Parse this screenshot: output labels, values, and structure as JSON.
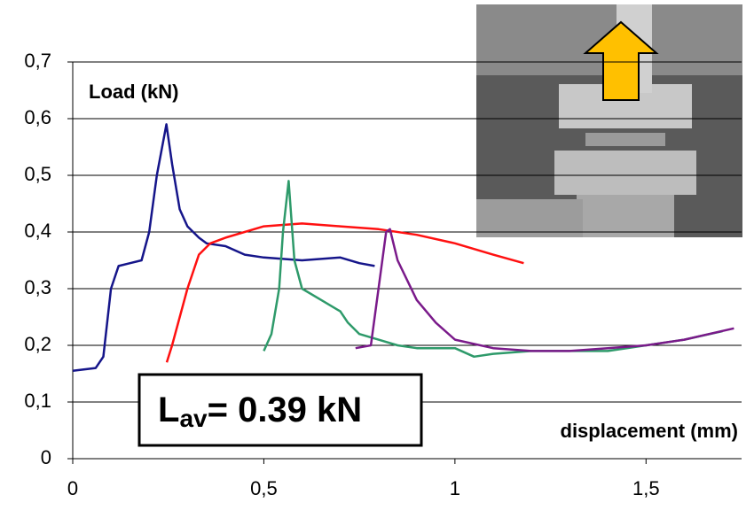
{
  "chart_data": {
    "type": "line",
    "y_label": "Load (kN)",
    "x_label": "displacement (mm)",
    "annotation": {
      "main": "L",
      "sub": "av",
      "rest": "= 0.39 kN"
    },
    "xlim": [
      0,
      1.75
    ],
    "ylim": [
      0,
      0.7
    ],
    "grid": true,
    "xticks": [
      0,
      {
        "value": 0.5,
        "label": "0,5"
      },
      1,
      {
        "value": 1.5,
        "label": "1,5"
      }
    ],
    "yticks": [
      0,
      {
        "value": 0.1,
        "label": "0,1"
      },
      {
        "value": 0.2,
        "label": "0,2"
      },
      {
        "value": 0.3,
        "label": "0,3"
      },
      {
        "value": 0.4,
        "label": "0,4"
      },
      {
        "value": 0.5,
        "label": "0,5"
      },
      {
        "value": 0.6,
        "label": "0,6"
      },
      {
        "value": 0.7,
        "label": "0,7"
      }
    ],
    "series": [
      {
        "color": "#15158a",
        "x": [
          0,
          0.06,
          0.08,
          0.1,
          0.12,
          0.15,
          0.18,
          0.2,
          0.22,
          0.245,
          0.26,
          0.28,
          0.3,
          0.33,
          0.35,
          0.4,
          0.45,
          0.5,
          0.6,
          0.7,
          0.75,
          0.79
        ],
        "values": [
          0.155,
          0.16,
          0.18,
          0.3,
          0.34,
          0.345,
          0.35,
          0.4,
          0.5,
          0.59,
          0.52,
          0.44,
          0.41,
          0.39,
          0.38,
          0.375,
          0.36,
          0.355,
          0.35,
          0.355,
          0.345,
          0.34
        ]
      },
      {
        "color": "#ff1010",
        "x": [
          0.246,
          0.26,
          0.3,
          0.33,
          0.36,
          0.4,
          0.5,
          0.6,
          0.7,
          0.8,
          0.9,
          1.0,
          1.1,
          1.18
        ],
        "values": [
          0.17,
          0.2,
          0.3,
          0.36,
          0.38,
          0.39,
          0.41,
          0.415,
          0.41,
          0.405,
          0.395,
          0.38,
          0.36,
          0.345
        ]
      },
      {
        "color": "#2e9a6a",
        "x": [
          0.5,
          0.52,
          0.54,
          0.55,
          0.565,
          0.58,
          0.6,
          0.65,
          0.7,
          0.72,
          0.75,
          0.8,
          0.85,
          0.9,
          1.0,
          1.05,
          1.1,
          1.2,
          1.3,
          1.4,
          1.5,
          1.6,
          1.7
        ],
        "values": [
          0.19,
          0.22,
          0.3,
          0.4,
          0.49,
          0.35,
          0.3,
          0.28,
          0.26,
          0.24,
          0.22,
          0.21,
          0.2,
          0.195,
          0.195,
          0.18,
          0.185,
          0.19,
          0.19,
          0.19,
          0.2,
          0.21,
          0.225
        ]
      },
      {
        "color": "#7a1a8a",
        "x": [
          0.74,
          0.78,
          0.8,
          0.82,
          0.83,
          0.85,
          0.9,
          0.95,
          1.0,
          1.1,
          1.2,
          1.3,
          1.4,
          1.5,
          1.6,
          1.73
        ],
        "values": [
          0.195,
          0.2,
          0.3,
          0.4,
          0.405,
          0.35,
          0.28,
          0.24,
          0.21,
          0.195,
          0.19,
          0.19,
          0.195,
          0.2,
          0.21,
          0.23
        ]
      }
    ]
  }
}
